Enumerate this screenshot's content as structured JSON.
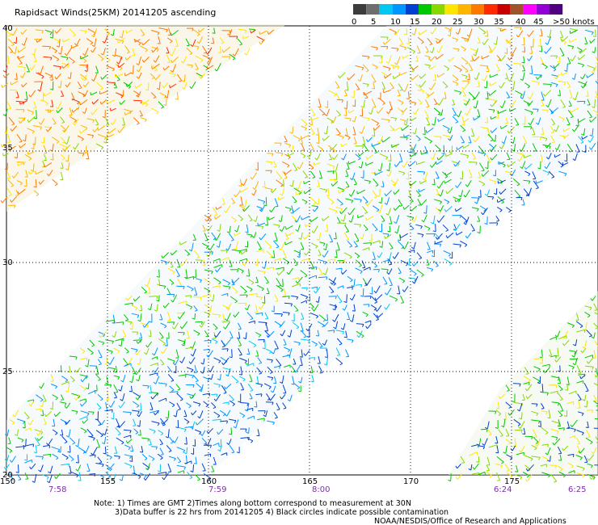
{
  "title": "Rapidsact Winds(25KM) 20141205 ascending",
  "color_scale": {
    "labels": [
      "0",
      "5",
      "10",
      "15",
      "20",
      "25",
      "30",
      "35",
      "40",
      "45",
      ">50 knots"
    ],
    "colors": [
      "#3c3c3c",
      "#6e6e6e",
      "#00c8f0",
      "#0096ff",
      "#0040d0",
      "#00c800",
      "#88d800",
      "#ffe600",
      "#ffb400",
      "#ff7800",
      "#ff2a00",
      "#c80000",
      "#a0522d",
      "#ff00ff",
      "#9400d3",
      "#500080"
    ]
  },
  "lat_labels": [
    "40",
    "35",
    "30",
    "25",
    "20"
  ],
  "lon_labels": [
    "150",
    "155",
    "160",
    "165",
    "170",
    "175"
  ],
  "time_labels": [
    "7:58",
    "7:59",
    "8:00",
    "6:24",
    "6:25"
  ],
  "note_line1": "Note: 1) Times are GMT 2)Times along bottom correspond to measurement at 30N",
  "note_line2": "3)Data buffer is 22 hrs from 20141205 4) Black circles indicate possible contamination",
  "credit": "NOAA/NESDIS/Office of Research and Applications"
}
